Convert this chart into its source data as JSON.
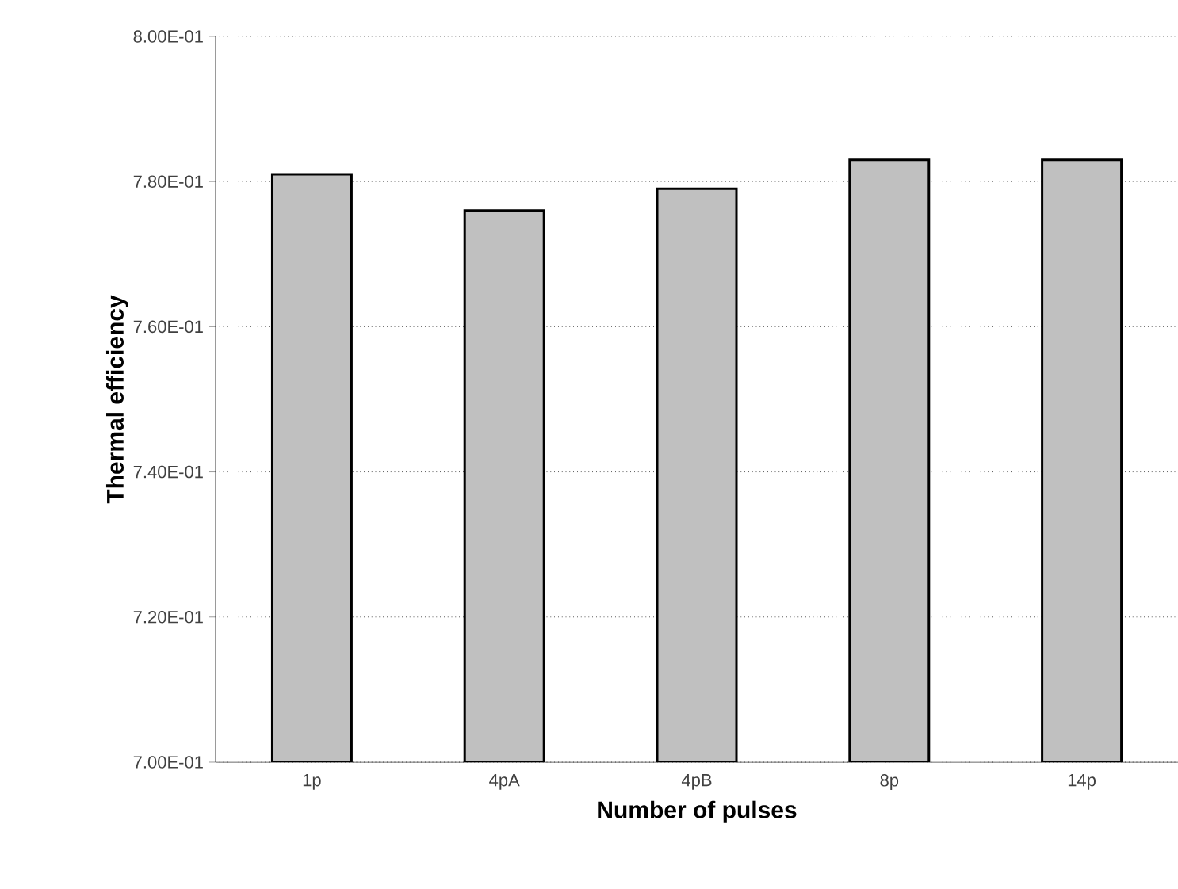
{
  "chart_data": {
    "type": "bar",
    "xlabel": "Number of pulses",
    "ylabel": "Thermal efficiency",
    "categories": [
      "1p",
      "4pA",
      "4pB",
      "8p",
      "14p"
    ],
    "values": [
      0.781,
      0.776,
      0.779,
      0.783,
      0.783
    ],
    "color": "#c0c0c0",
    "ylim": [
      0.7,
      0.8
    ],
    "yticks": [
      {
        "value": 0.7,
        "label": "7.00E-01"
      },
      {
        "value": 0.72,
        "label": "7.20E-01"
      },
      {
        "value": 0.74,
        "label": "7.40E-01"
      },
      {
        "value": 0.76,
        "label": "7.60E-01"
      },
      {
        "value": 0.78,
        "label": "7.80E-01"
      },
      {
        "value": 0.8,
        "label": "8.00E-01"
      }
    ],
    "grid": "y"
  }
}
